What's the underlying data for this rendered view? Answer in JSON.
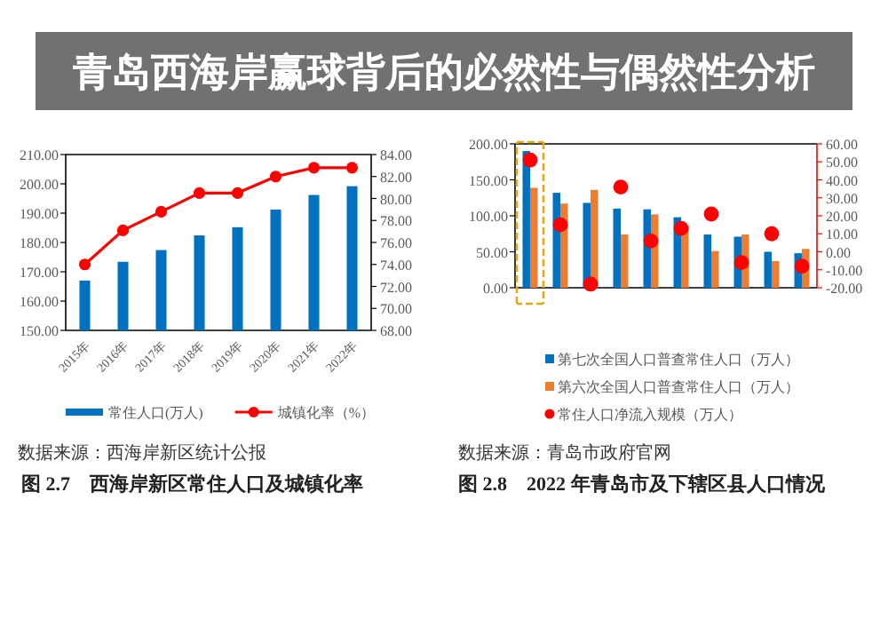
{
  "chart_data": [
    {
      "type": "bar",
      "title": "图 2.7　西海岸新区常住人口及城镇化率",
      "annotations": [
        "数据来源：西海岸新区统计公报"
      ],
      "categories": [
        "2015年",
        "2016年",
        "2017年",
        "2018年",
        "2019年",
        "2020年",
        "2021年",
        "2022年"
      ],
      "series": [
        {
          "name": "常住人口(万人)",
          "color": "#0070c0",
          "values": [
            167.0,
            173.4,
            177.4,
            182.4,
            185.2,
            191.2,
            196.2,
            199.2
          ]
        },
        {
          "name": "城镇化率（%）",
          "color": "#ff0000",
          "type": "line",
          "axis": "y2",
          "marker": "circle",
          "values": [
            74.0,
            77.1,
            78.8,
            80.5,
            80.5,
            82.0,
            82.8,
            82.8
          ]
        }
      ],
      "ylim": [
        150,
        210
      ],
      "yticks": [
        {
          "value": 150,
          "label": "150.00"
        },
        {
          "value": 160,
          "label": "160.00"
        },
        {
          "value": 170,
          "label": "170.00"
        },
        {
          "value": 180,
          "label": "180.00"
        },
        {
          "value": 190,
          "label": "190.00"
        },
        {
          "value": 200,
          "label": "200.00"
        },
        {
          "value": 210,
          "label": "210.00"
        }
      ],
      "y2lim": [
        68,
        84
      ],
      "y2ticks": [
        {
          "value": 68,
          "label": "68.00"
        },
        {
          "value": 70,
          "label": "70.00"
        },
        {
          "value": 72,
          "label": "72.00"
        },
        {
          "value": 74,
          "label": "74.00"
        },
        {
          "value": 76,
          "label": "76.00"
        },
        {
          "value": 78,
          "label": "78.00"
        },
        {
          "value": 80,
          "label": "80.00"
        },
        {
          "value": 82,
          "label": "82.00"
        },
        {
          "value": 84,
          "label": "84.00"
        }
      ],
      "legend": "bottom"
    },
    {
      "type": "bar",
      "title": "图 2.8　2022 年青岛市及下辖区县人口情况",
      "annotations": [
        "数据来源：青岛市政府官网"
      ],
      "categories": [
        null,
        null,
        null,
        null,
        null,
        null,
        null,
        null,
        null,
        null
      ],
      "series": [
        {
          "name": "第七次全国人口普查常住人口（万人）",
          "color": "#0070c0",
          "values": [
            190,
            132,
            118,
            110,
            109,
            98,
            74,
            71,
            50,
            48
          ]
        },
        {
          "name": "第六次全国人口普查常住人口（万人）",
          "color": "#ed7d31",
          "values": [
            139,
            117,
            136,
            74,
            102,
            87,
            51,
            74,
            37,
            54
          ]
        },
        {
          "name": "常住人口净流入规模（万人）",
          "color": "#ff0000",
          "type": "scatter",
          "axis": "y2",
          "marker": "circle",
          "values": [
            51,
            15,
            -18,
            36,
            6,
            13,
            21,
            -6,
            10,
            -8
          ]
        }
      ],
      "ylim": [
        0,
        200
      ],
      "yticks": [
        {
          "value": 0,
          "label": "0.00"
        },
        {
          "value": 50,
          "label": "50.00"
        },
        {
          "value": 100,
          "label": "100.00"
        },
        {
          "value": 150,
          "label": "150.00"
        },
        {
          "value": 200,
          "label": "200.00"
        }
      ],
      "y2lim": [
        -20,
        60
      ],
      "y2ticks": [
        {
          "value": -20,
          "label": "-20.00"
        },
        {
          "value": -10,
          "label": "-10.00"
        },
        {
          "value": 0,
          "label": "0.00"
        },
        {
          "value": 10,
          "label": "10.00"
        },
        {
          "value": 20,
          "label": "20.00"
        },
        {
          "value": 30,
          "label": "30.00"
        },
        {
          "value": 40,
          "label": "40.00"
        },
        {
          "value": 50,
          "label": "50.00"
        },
        {
          "value": 60,
          "label": "60.00"
        }
      ],
      "legend": "bottom"
    },
    {
      "type": "other",
      "title": "青岛西海岸赢球背后的必然性与偶然性分析"
    }
  ]
}
